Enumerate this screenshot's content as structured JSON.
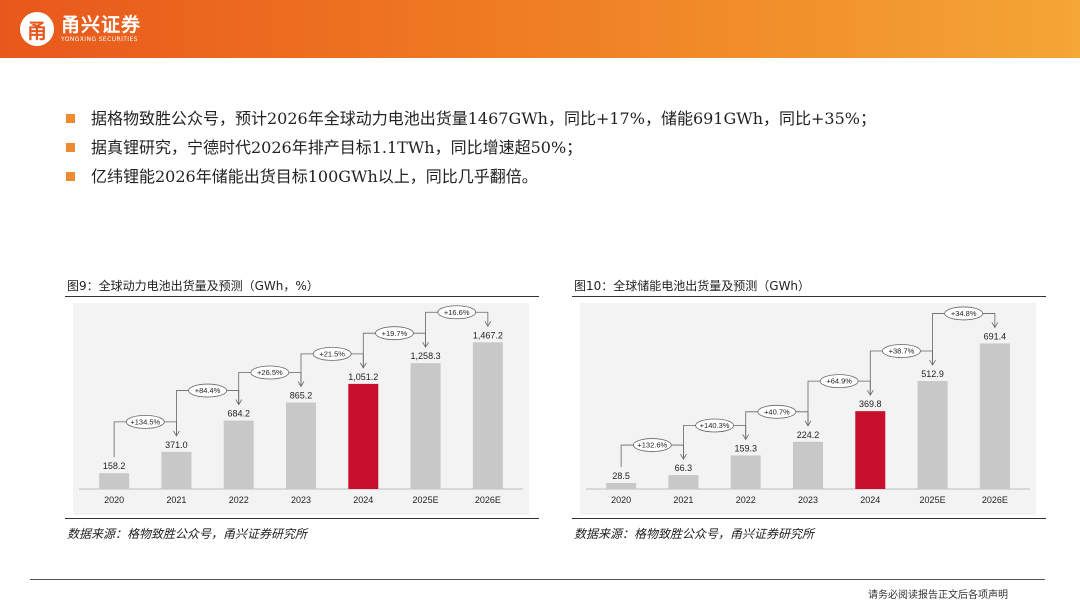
{
  "header": {
    "logo_mark": "甬",
    "logo_name": "甬兴证券",
    "logo_en": "YONGXING SECURITIES",
    "color_start": "#e8581c",
    "color_end": "#f4a636"
  },
  "bullets": [
    "据格物致胜公众号，预计2026年全球动力电池出货量1467GWh，同比+17%，储能691GWh，同比+35%；",
    "据真锂研究，宁德时代2026年排产目标1.1TWh，同比增速超50%；",
    "亿纬锂能2026年储能出货目标100GWh以上，同比几乎翻倍。"
  ],
  "panels": [
    {
      "title": "图9：全球动力电池出货量及预测（GWh，%）",
      "source": "数据来源：格物致胜公众号，甬兴证券研究所"
    },
    {
      "title": "图10：全球储能电池出货量及预测（GWh）",
      "source": "数据来源：格物致胜公众号，甬兴证券研究所"
    }
  ],
  "chart_data": [
    {
      "type": "bar",
      "title": "图9：全球动力电池出货量及预测（GWh，%）",
      "categories": [
        "2020",
        "2021",
        "2022",
        "2023",
        "2024",
        "2025E",
        "2026E"
      ],
      "values": [
        158.2,
        371.0,
        684.2,
        865.2,
        1051.2,
        1258.3,
        1467.2
      ],
      "value_labels": [
        "158.2",
        "371.0",
        "684.2",
        "865.2",
        "1,051.2",
        "1,258.3",
        "1,467.2"
      ],
      "growth_labels": [
        "+134.5%",
        "+84.4%",
        "+26.5%",
        "+21.5%",
        "+19.7%",
        "+16.6%"
      ],
      "highlight_index": 4,
      "ylim": [
        0,
        1600
      ],
      "bar_color": "#c8c8c8",
      "highlight_color": "#c8102e",
      "xlabel": "",
      "ylabel": "",
      "grid": false,
      "legend": "none"
    },
    {
      "type": "bar",
      "title": "图10：全球储能电池出货量及预测（GWh）",
      "categories": [
        "2020",
        "2021",
        "2022",
        "2023",
        "2024",
        "2025E",
        "2026E"
      ],
      "values": [
        28.5,
        66.3,
        159.3,
        224.2,
        369.8,
        512.9,
        691.4
      ],
      "value_labels": [
        "28.5",
        "66.3",
        "159.3",
        "224.2",
        "369.8",
        "512.9",
        "691.4"
      ],
      "growth_labels": [
        "+132.6%",
        "+140.3%",
        "+40.7%",
        "+64.9%",
        "+38.7%",
        "+34.8%"
      ],
      "highlight_index": 4,
      "ylim": [
        0,
        760
      ],
      "bar_color": "#c8c8c8",
      "highlight_color": "#c8102e",
      "xlabel": "",
      "ylabel": "",
      "grid": false,
      "legend": "none"
    }
  ],
  "footer": {
    "disclaimer": "请务必阅读报告正文后各项声明"
  }
}
